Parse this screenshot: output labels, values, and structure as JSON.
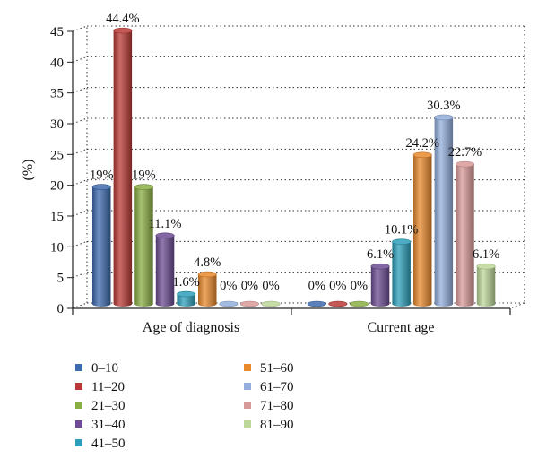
{
  "chart_data": {
    "type": "bar",
    "ylabel": "(%)",
    "ylim": [
      0,
      45
    ],
    "yticks": [
      0,
      5,
      10,
      15,
      20,
      25,
      30,
      35,
      40,
      45
    ],
    "grid": true,
    "legend_position": "bottom",
    "categories": [
      "Age of diagnosis",
      "Current age"
    ],
    "series": [
      {
        "name": "0–10",
        "color": "#3E6AAE",
        "values": [
          19,
          0
        ],
        "labels": [
          "19%",
          "0%"
        ]
      },
      {
        "name": "11–20",
        "color": "#B83A36",
        "values": [
          44.4,
          0
        ],
        "labels": [
          "44.4%",
          "0%"
        ]
      },
      {
        "name": "21–30",
        "color": "#8AAE44",
        "values": [
          19,
          0
        ],
        "labels": [
          "19%",
          "0%"
        ]
      },
      {
        "name": "31–40",
        "color": "#6C4C92",
        "values": [
          11.1,
          6.1
        ],
        "labels": [
          "11.1%",
          "6.1%"
        ]
      },
      {
        "name": "41–50",
        "color": "#2E9FBA",
        "values": [
          1.6,
          10.1
        ],
        "labels": [
          "1.6%",
          "10.1%"
        ]
      },
      {
        "name": "51–60",
        "color": "#E8892E",
        "values": [
          4.8,
          24.2
        ],
        "labels": [
          "4.8%",
          "24.2%"
        ]
      },
      {
        "name": "61–70",
        "color": "#93AEDC",
        "values": [
          0,
          30.3
        ],
        "labels": [
          "0%",
          "30.3%"
        ]
      },
      {
        "name": "71–80",
        "color": "#D89A98",
        "values": [
          0,
          22.7
        ],
        "labels": [
          "0%",
          "22.7%"
        ]
      },
      {
        "name": "81–90",
        "color": "#BDD798",
        "values": [
          0,
          6.1
        ],
        "labels": [
          "0%",
          "6.1%"
        ]
      }
    ]
  }
}
